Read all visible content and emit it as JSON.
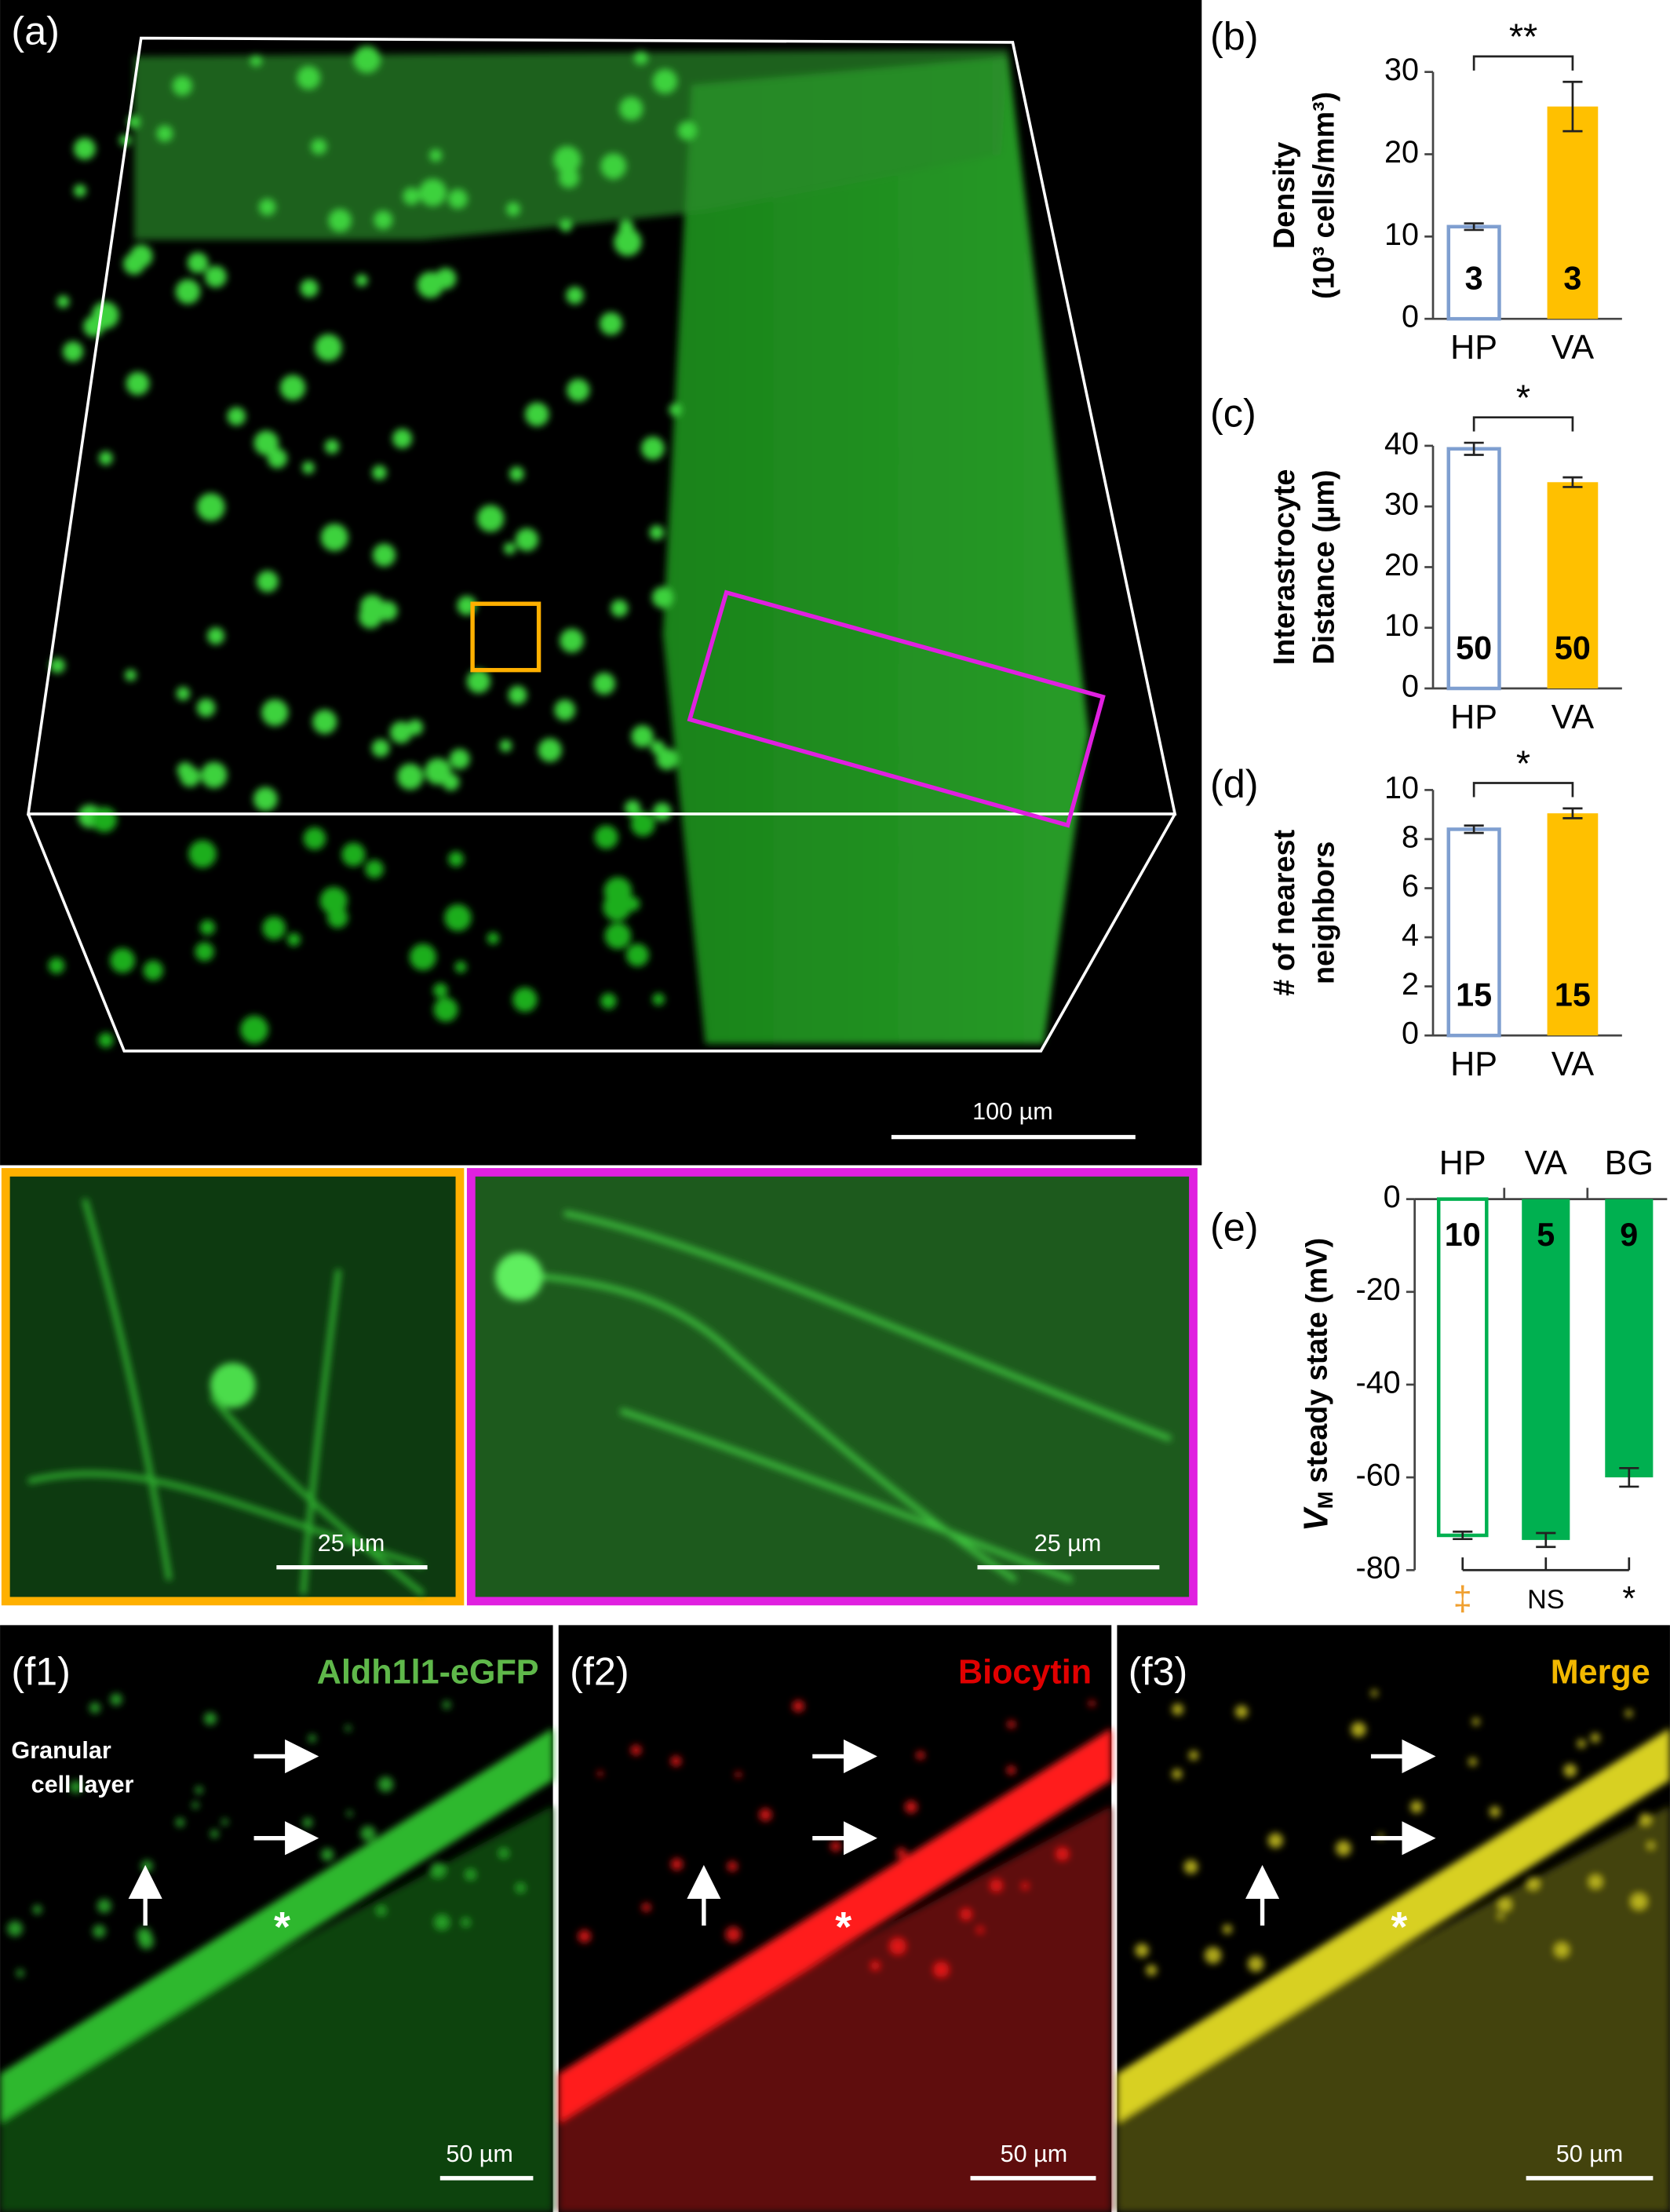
{
  "panel_a": {
    "label": "(a)",
    "scale_bar": "100 µm",
    "zoom_scale_bars": [
      "25 µm",
      "25 µm"
    ]
  },
  "panel_f": [
    {
      "label": "(f1)",
      "channel": "Aldh1l1-eGFP",
      "region": [
        "Granular",
        "cell layer"
      ],
      "marker": "*",
      "scale_bar": "50 µm"
    },
    {
      "label": "(f2)",
      "channel": "Biocytin",
      "marker": "*",
      "scale_bar": "50 µm"
    },
    {
      "label": "(f3)",
      "channel": "Merge",
      "marker": "*",
      "scale_bar": "50 µm"
    }
  ],
  "chart_data": [
    {
      "type": "bar",
      "panel": "(b)",
      "ylabel": [
        "Density",
        "(10³ cells/mm³)"
      ],
      "categories": [
        "HP",
        "VA"
      ],
      "values": [
        11.2,
        25.8
      ],
      "errors": [
        0.4,
        3.0
      ],
      "n": [
        3,
        3
      ],
      "colors": [
        "#7f9fd0",
        "#ffc000"
      ],
      "hollow": [
        true,
        false
      ],
      "ylim": [
        0,
        30
      ],
      "yticks": [
        0,
        10,
        20,
        30
      ],
      "significance": "**"
    },
    {
      "type": "bar",
      "panel": "(c)",
      "ylabel": [
        "Interastrocyte",
        "Distance (µm)"
      ],
      "categories": [
        "HP",
        "VA"
      ],
      "values": [
        39.5,
        34.0
      ],
      "errors": [
        1.0,
        0.8
      ],
      "n": [
        50,
        50
      ],
      "colors": [
        "#7f9fd0",
        "#ffc000"
      ],
      "hollow": [
        true,
        false
      ],
      "ylim": [
        0,
        40
      ],
      "yticks": [
        0,
        10,
        20,
        30,
        40
      ],
      "significance": "*"
    },
    {
      "type": "bar",
      "panel": "(d)",
      "ylabel": [
        "# of nearest",
        "neighbors"
      ],
      "categories": [
        "HP",
        "VA"
      ],
      "values": [
        8.4,
        9.05
      ],
      "errors": [
        0.15,
        0.2
      ],
      "n": [
        15,
        15
      ],
      "colors": [
        "#7f9fd0",
        "#ffc000"
      ],
      "hollow": [
        true,
        false
      ],
      "ylim": [
        0,
        10
      ],
      "yticks": [
        0,
        2,
        4,
        6,
        8,
        10
      ],
      "significance": "*"
    },
    {
      "type": "bar",
      "panel": "(e)",
      "ylabel": [
        "V",
        "M",
        " steady state (mV)"
      ],
      "categories": [
        "HP",
        "VA",
        "BG"
      ],
      "category_position": "top",
      "values": [
        -72.5,
        -73.5,
        -60
      ],
      "errors": [
        0.8,
        1.5,
        2.0
      ],
      "n": [
        10,
        5,
        9
      ],
      "colors": [
        "#00b050",
        "#00b050",
        "#00b050"
      ],
      "hollow": [
        true,
        false,
        false
      ],
      "ylim": [
        -80,
        0
      ],
      "yticks": [
        0,
        -20,
        -40,
        -60,
        -80
      ],
      "comparisons": [
        "‡",
        "NS",
        "*"
      ],
      "comparison_colors": [
        "#f0a030",
        "#000000",
        "#000000"
      ]
    }
  ]
}
